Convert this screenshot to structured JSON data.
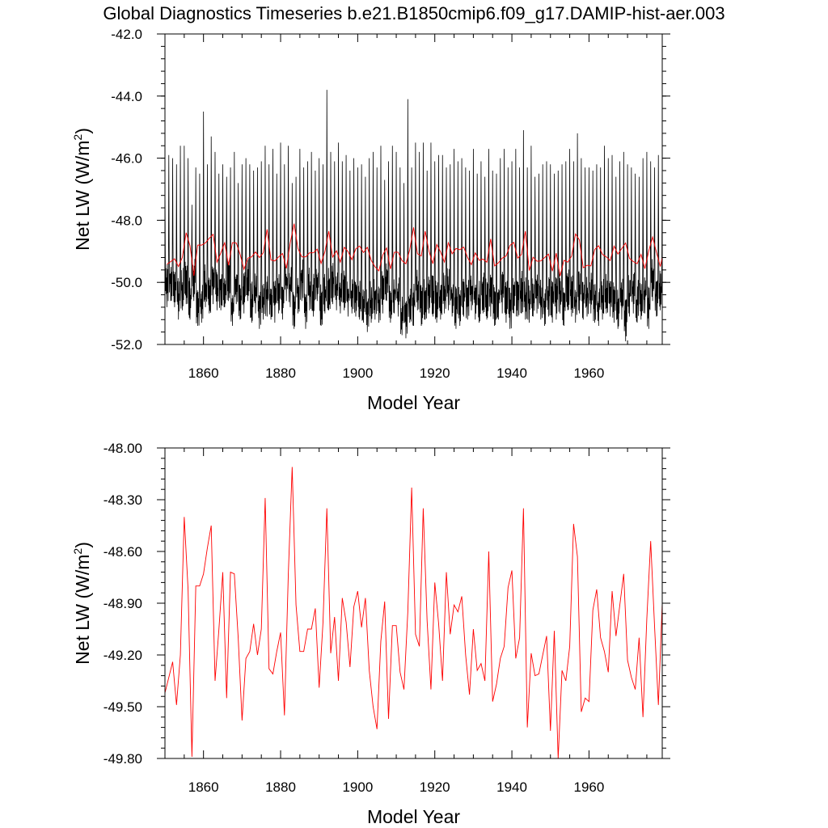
{
  "title": "Global Diagnostics Timeseries b.e21.B1850cmip6.f09_g17.DAMIP-hist-aer.003",
  "colors": {
    "monthly": "#000000",
    "annual": "#ff0000",
    "axes": "#000000",
    "background": "#ffffff"
  },
  "chart_data": [
    {
      "type": "line",
      "xlabel": "Model Year",
      "ylabel_text": "Net LW (W/m",
      "ylabel_sup": "2",
      "ylabel_close": ")",
      "xlim": [
        1850,
        1979
      ],
      "ylim": [
        -52.0,
        -42.0
      ],
      "xticks": [
        1860,
        1880,
        1900,
        1920,
        1940,
        1960
      ],
      "xtick_labels": [
        "1860",
        "1880",
        "1900",
        "1920",
        "1940",
        "1960"
      ],
      "yticks": [
        -42.0,
        -44.0,
        -46.0,
        -48.0,
        -50.0,
        -52.0
      ],
      "ytick_labels": [
        "-42.0",
        "-44.0",
        "-46.0",
        "-48.0",
        "-50.0",
        "-52.0"
      ],
      "grid": false,
      "monthly_series": {
        "color": "#000000",
        "resolution": "monthly",
        "annual_peak": [
          -46.7,
          -45.9,
          -46.0,
          -46.2,
          -45.6,
          -45.6,
          -46.0,
          -47.5,
          -46.3,
          -46.5,
          -44.5,
          -46.2,
          -45.3,
          -45.8,
          -46.5,
          -46.2,
          -46.6,
          -46.3,
          -45.8,
          -46.8,
          -46.2,
          -46.0,
          -46.2,
          -46.4,
          -46.3,
          -46.1,
          -45.6,
          -46.2,
          -45.7,
          -46.5,
          -45.5,
          -46.2,
          -45.6,
          -46.8,
          -46.6,
          -45.7,
          -46.3,
          -46.1,
          -45.8,
          -46.4,
          -46.0,
          -46.2,
          -43.8,
          -45.8,
          -46.1,
          -45.5,
          -46.1,
          -45.9,
          -46.4,
          -46.0,
          -46.3,
          -46.2,
          -46.6,
          -46.0,
          -45.8,
          -46.3,
          -45.6,
          -46.7,
          -46.1,
          -45.6,
          -45.8,
          -46.3,
          -46.8,
          -44.1,
          -46.3,
          -45.5,
          -45.8,
          -45.5,
          -46.4,
          -45.5,
          -46.1,
          -45.9,
          -45.9,
          -46.3,
          -46.2,
          -45.7,
          -46.1,
          -46.0,
          -46.3,
          -46.4,
          -45.7,
          -46.5,
          -46.1,
          -46.6,
          -45.7,
          -46.4,
          -46.5,
          -46.0,
          -45.7,
          -46.3,
          -46.1,
          -45.7,
          -46.3,
          -45.1,
          -46.3,
          -45.6,
          -46.6,
          -46.5,
          -46.2,
          -46.1,
          -46.2,
          -46.5,
          -46.4,
          -46.2,
          -46.1,
          -45.7,
          -46.1,
          -45.2,
          -46.0,
          -46.3,
          -46.3,
          -46.4,
          -46.2,
          -46.3,
          -45.6,
          -46.0,
          -45.9,
          -46.6,
          -46.1,
          -45.8,
          -46.2,
          -46.3,
          -46.5,
          -46.6,
          -46.0,
          -45.8,
          -46.1,
          -46.3,
          -45.9,
          -45.7
        ],
        "annual_trough": [
          -50.8,
          -50.6,
          -50.8,
          -51.2,
          -50.9,
          -50.7,
          -51.2,
          -50.6,
          -51.4,
          -51.3,
          -50.8,
          -51.0,
          -50.7,
          -50.9,
          -50.9,
          -50.8,
          -50.6,
          -51.4,
          -50.7,
          -51.2,
          -51.0,
          -50.6,
          -51.3,
          -51.0,
          -51.5,
          -51.2,
          -51.1,
          -51.2,
          -51.3,
          -51.0,
          -51.2,
          -50.6,
          -50.8,
          -51.5,
          -51.0,
          -50.6,
          -51.5,
          -50.9,
          -51.1,
          -50.6,
          -51.4,
          -51.0,
          -50.9,
          -50.7,
          -50.9,
          -51.0,
          -50.9,
          -51.1,
          -51.0,
          -51.1,
          -51.2,
          -51.3,
          -51.6,
          -51.3,
          -51.2,
          -51.3,
          -51.0,
          -50.6,
          -51.3,
          -51.0,
          -51.1,
          -51.7,
          -51.8,
          -51.3,
          -51.4,
          -50.9,
          -51.4,
          -51.2,
          -51.0,
          -51.1,
          -51.3,
          -51.2,
          -51.0,
          -50.9,
          -51.1,
          -51.5,
          -51.4,
          -51.1,
          -51.2,
          -50.9,
          -51.2,
          -51.3,
          -51.0,
          -51.2,
          -51.1,
          -51.4,
          -51.2,
          -51.0,
          -51.3,
          -51.5,
          -51.0,
          -51.1,
          -51.0,
          -51.2,
          -51.3,
          -51.1,
          -51.0,
          -51.2,
          -51.4,
          -51.1,
          -51.3,
          -51.2,
          -51.0,
          -51.4,
          -50.9,
          -51.1,
          -51.3,
          -51.0,
          -51.2,
          -51.1,
          -51.0,
          -51.3,
          -51.4,
          -51.2,
          -51.0,
          -51.1,
          -51.3,
          -51.5,
          -51.2,
          -51.9,
          -51.1,
          -51.0,
          -51.3,
          -51.2,
          -51.0,
          -51.5,
          -50.6,
          -51.1,
          -50.9,
          -50.5
        ]
      }
    },
    {
      "type": "line",
      "xlabel": "Model Year",
      "ylabel_text": "Net LW (W/m",
      "ylabel_sup": "2",
      "ylabel_close": ")",
      "xlim": [
        1850,
        1979
      ],
      "ylim": [
        -49.8,
        -48.0
      ],
      "xticks": [
        1860,
        1880,
        1900,
        1920,
        1940,
        1960
      ],
      "xtick_labels": [
        "1860",
        "1880",
        "1900",
        "1920",
        "1940",
        "1960"
      ],
      "yticks": [
        -48.0,
        -48.3,
        -48.6,
        -48.9,
        -49.2,
        -49.5,
        -49.8
      ],
      "ytick_labels": [
        "-48.00",
        "-48.30",
        "-48.60",
        "-48.90",
        "-49.20",
        "-49.50",
        "-49.80"
      ],
      "grid": false,
      "annual_series": {
        "color": "#ff0000",
        "x": [
          1850,
          1851,
          1852,
          1853,
          1854,
          1855,
          1856,
          1857,
          1858,
          1859,
          1860,
          1861,
          1862,
          1863,
          1864,
          1865,
          1866,
          1867,
          1868,
          1869,
          1870,
          1871,
          1872,
          1873,
          1874,
          1875,
          1876,
          1877,
          1878,
          1879,
          1880,
          1881,
          1882,
          1883,
          1884,
          1885,
          1886,
          1887,
          1888,
          1889,
          1890,
          1891,
          1892,
          1893,
          1894,
          1895,
          1896,
          1897,
          1898,
          1899,
          1900,
          1901,
          1902,
          1903,
          1904,
          1905,
          1906,
          1907,
          1908,
          1909,
          1910,
          1911,
          1912,
          1913,
          1914,
          1915,
          1916,
          1917,
          1918,
          1919,
          1920,
          1921,
          1922,
          1923,
          1924,
          1925,
          1926,
          1927,
          1928,
          1929,
          1930,
          1931,
          1932,
          1933,
          1934,
          1935,
          1936,
          1937,
          1938,
          1939,
          1940,
          1941,
          1942,
          1943,
          1944,
          1945,
          1946,
          1947,
          1948,
          1949,
          1950,
          1951,
          1952,
          1953,
          1954,
          1955,
          1956,
          1957,
          1958,
          1959,
          1960,
          1961,
          1962,
          1963,
          1964,
          1965,
          1966,
          1967,
          1968,
          1969,
          1970,
          1971,
          1972,
          1973,
          1974,
          1975,
          1976,
          1977,
          1978,
          1979
        ],
        "values": [
          -49.42,
          -49.33,
          -49.24,
          -49.49,
          -49.2,
          -48.4,
          -48.82,
          -49.79,
          -48.8,
          -48.8,
          -48.73,
          -48.58,
          -48.45,
          -49.35,
          -49.05,
          -48.72,
          -49.45,
          -48.72,
          -48.73,
          -49.1,
          -49.58,
          -49.22,
          -49.18,
          -49.02,
          -49.2,
          -49.05,
          -48.29,
          -49.28,
          -49.31,
          -49.18,
          -49.07,
          -49.55,
          -48.73,
          -48.11,
          -48.91,
          -49.18,
          -49.18,
          -49.05,
          -49.05,
          -48.93,
          -49.39,
          -49.01,
          -48.35,
          -49.19,
          -48.98,
          -49.35,
          -48.87,
          -49.01,
          -49.27,
          -48.92,
          -48.83,
          -49.04,
          -48.87,
          -49.29,
          -49.5,
          -49.63,
          -49.12,
          -48.89,
          -49.57,
          -49.03,
          -49.03,
          -49.3,
          -49.4,
          -48.95,
          -48.23,
          -49.08,
          -49.15,
          -48.35,
          -49.0,
          -49.4,
          -48.78,
          -49.02,
          -49.35,
          -48.72,
          -49.08,
          -48.91,
          -48.95,
          -48.86,
          -49.2,
          -49.43,
          -49.05,
          -49.29,
          -49.25,
          -49.35,
          -48.6,
          -49.47,
          -49.37,
          -49.22,
          -49.15,
          -48.81,
          -48.71,
          -49.22,
          -49.1,
          -48.35,
          -49.62,
          -49.19,
          -49.32,
          -49.31,
          -49.2,
          -49.09,
          -49.64,
          -49.06,
          -49.8,
          -49.29,
          -49.35,
          -49.15,
          -48.44,
          -48.63,
          -49.53,
          -49.45,
          -49.47,
          -48.94,
          -48.82,
          -49.1,
          -49.18,
          -49.3,
          -48.83,
          -49.09,
          -48.91,
          -48.73,
          -49.23,
          -49.33,
          -49.4,
          -49.1,
          -49.56,
          -48.99,
          -48.54,
          -49.03,
          -49.49,
          -48.9
        ]
      }
    }
  ]
}
